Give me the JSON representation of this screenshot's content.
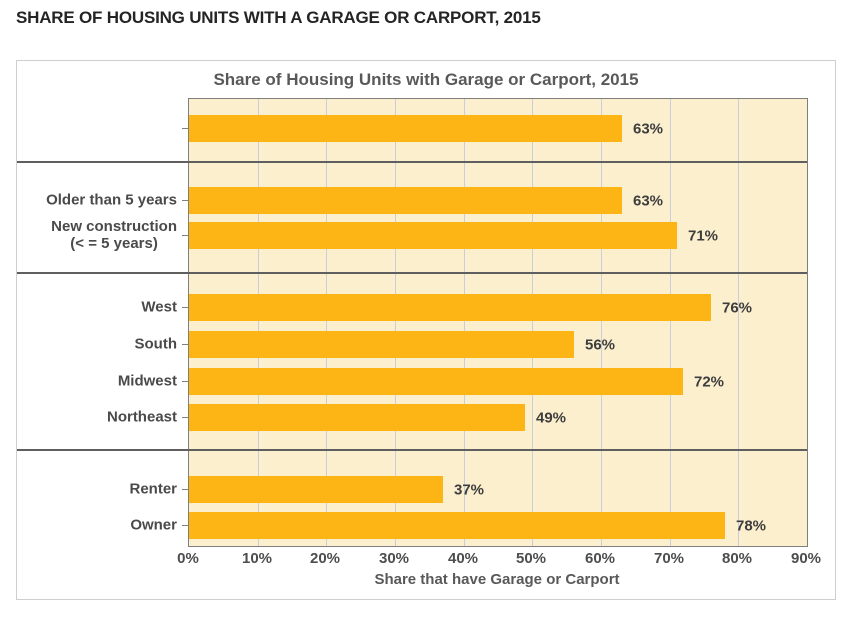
{
  "page": {
    "heading": "SHARE OF HOUSING UNITS WITH A GARAGE OR CARPORT, 2015"
  },
  "chart_data": {
    "type": "bar",
    "orientation": "horizontal",
    "title": "Share of Housing Units with Garage or Carport, 2015",
    "xlabel": "Share that have Garage or Carport",
    "xlim": [
      0,
      90
    ],
    "x_tick_labels": [
      "0%",
      "10%",
      "20%",
      "30%",
      "40%",
      "50%",
      "60%",
      "70%",
      "80%",
      "90%"
    ],
    "grid": true,
    "legend": false,
    "colors": {
      "bar": "#FCB514",
      "plot_background": "#FCEFCE",
      "gridline": "#C9CFDA",
      "divider": "#5F5F5F",
      "plot_border": "#7F7F7F",
      "card_border": "#CFCFCF"
    },
    "groups": [
      {
        "name": "all-units",
        "rows": [
          {
            "label": "",
            "value": 63,
            "value_label": "63%"
          }
        ]
      },
      {
        "name": "age",
        "rows": [
          {
            "label": "Older than 5 years",
            "value": 63,
            "value_label": "63%"
          },
          {
            "label": "New construction\n(< = 5 years)",
            "value": 71,
            "value_label": "71%"
          }
        ]
      },
      {
        "name": "region",
        "rows": [
          {
            "label": "West",
            "value": 76,
            "value_label": "76%"
          },
          {
            "label": "South",
            "value": 56,
            "value_label": "56%"
          },
          {
            "label": "Midwest",
            "value": 72,
            "value_label": "72%"
          },
          {
            "label": "Northeast",
            "value": 49,
            "value_label": "49%"
          }
        ]
      },
      {
        "name": "tenure",
        "rows": [
          {
            "label": "Renter",
            "value": 37,
            "value_label": "37%"
          },
          {
            "label": "Owner",
            "value": 78,
            "value_label": "78%"
          }
        ]
      }
    ]
  }
}
